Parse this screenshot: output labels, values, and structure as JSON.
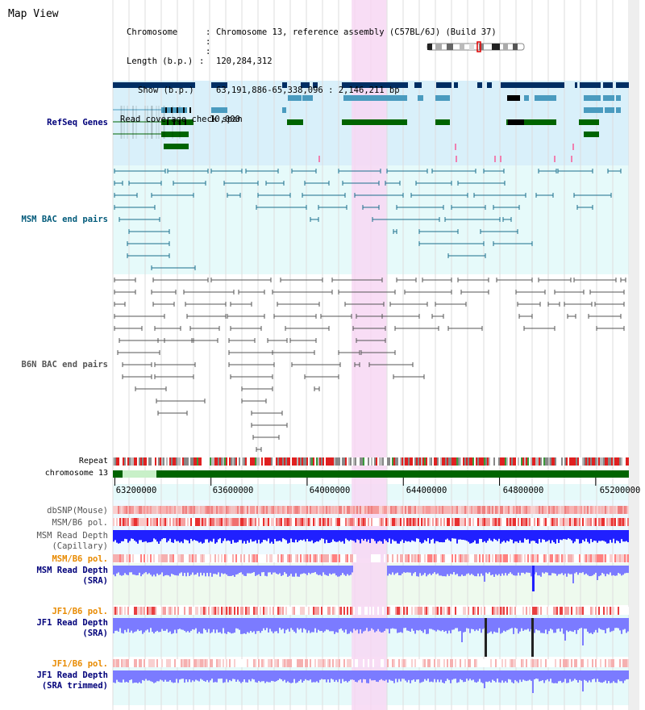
{
  "view": {
    "title": "Map View",
    "info": {
      "chromosome_key": "Chromosome",
      "chromosome_value": "Chromosome 13, reference assembly (C57BL/6J) (Build 37)",
      "length_key": "Length (b.p.)",
      "length_value": "120,284,312",
      "show_key": "Show (b.p.)",
      "show_value": "63,191,886-65,338,096 : 2,146,211 bp",
      "coverage_key": "Read coverage check span",
      "coverage_value": "10,000"
    }
  },
  "tracks": {
    "refseq": "RefSeq Genes",
    "msm_bac": "MSM BAC end pairs",
    "b6n_bac": "B6N BAC end pairs",
    "repeat": "Repeat",
    "chromosome": "chromosome 13",
    "dbsnp": "dbSNP(Mouse)",
    "msm_b6_pol": "MSM/B6 pol.",
    "msm_depth_cap": "MSM Read Depth",
    "msm_depth_cap_sub": "(Capillary)",
    "msm_b6_pol_2": "MSM/B6 pol.",
    "msm_depth_sra": "MSM Read Depth",
    "msm_depth_sra_sub": "(SRA)",
    "jf1_b6_pol": "JF1/B6 pol.",
    "jf1_depth_sra": "JF1 Read Depth",
    "jf1_depth_sra_sub": "(SRA)",
    "jf1_b6_pol_2": "JF1/B6 pol.",
    "jf1_depth_trim": "JF1 Read Depth",
    "jf1_depth_trim_sub": "(SRA trimmed)"
  },
  "axis": {
    "ticks": [
      "63200000",
      "63600000",
      "64000000",
      "64400000",
      "64800000",
      "65200000"
    ],
    "tick_values": [
      63200000,
      63600000,
      64000000,
      64400000,
      64800000,
      65200000
    ],
    "range": [
      63191886,
      65338096
    ],
    "highlight_range": [
      64185000,
      64330000
    ]
  },
  "colors": {
    "refseq_bg": "#d9f0fa",
    "msm_bg": "#e6fafa",
    "highlight": "#f7d7f3",
    "dark_gene": "#002e63",
    "mid_gene": "#4a9bbf",
    "green_gene": "#006400",
    "msm_pair": "#1a6e8c",
    "b6n_pair": "#555555",
    "chromosome": "#006400",
    "depth_blue": "#2020ff",
    "depth_light": "#7b7bff",
    "pol_orange": "#e88a00",
    "label_blue": "#00007a",
    "label_teal": "#005a7a",
    "label_gray": "#555555"
  }
}
